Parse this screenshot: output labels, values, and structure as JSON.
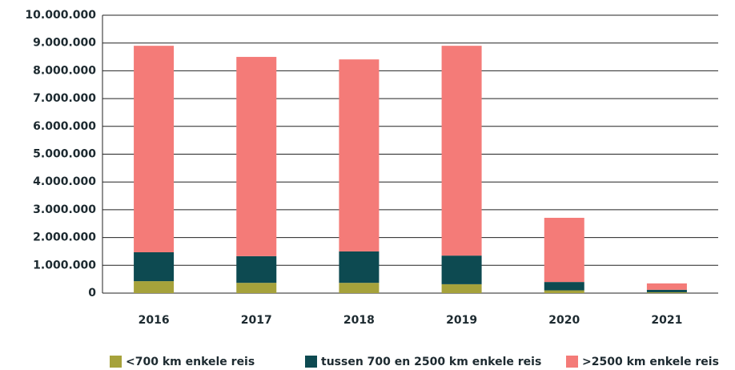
{
  "chart_data": {
    "type": "stacked_bar",
    "categories": [
      "2016",
      "2017",
      "2018",
      "2019",
      "2020",
      "2021"
    ],
    "series": [
      {
        "name": "<700 km enkele reis",
        "color": "#a6a23b",
        "values": [
          430000,
          370000,
          370000,
          320000,
          100000,
          30000
        ]
      },
      {
        "name": "tussen 700 en 2500 km enkele reis",
        "color": "#0d4a51",
        "values": [
          1040000,
          960000,
          1130000,
          1030000,
          300000,
          90000
        ]
      },
      {
        "name": ">2500 km enkele reis",
        "color": "#f47b78",
        "values": [
          7430000,
          7170000,
          6910000,
          7550000,
          2310000,
          230000
        ]
      }
    ],
    "ylim": [
      0,
      10000000
    ],
    "yticks": [
      0,
      {
        "value": 1000000,
        "label": "1.000.000"
      },
      {
        "value": 2000000,
        "label": "2.000.000"
      },
      {
        "value": 3000000,
        "label": "3.000.000"
      },
      {
        "value": 4000000,
        "label": "4.000.000"
      },
      {
        "value": 5000000,
        "label": "5.000.000"
      },
      {
        "value": 6000000,
        "label": "6.000.000"
      },
      {
        "value": 7000000,
        "label": "7.000.000"
      },
      {
        "value": 8000000,
        "label": "8.000.000"
      },
      {
        "value": 9000000,
        "label": "9.000.000"
      },
      {
        "value": 10000000,
        "label": "10.000.000"
      }
    ],
    "grid": true,
    "legend": "bottom"
  }
}
